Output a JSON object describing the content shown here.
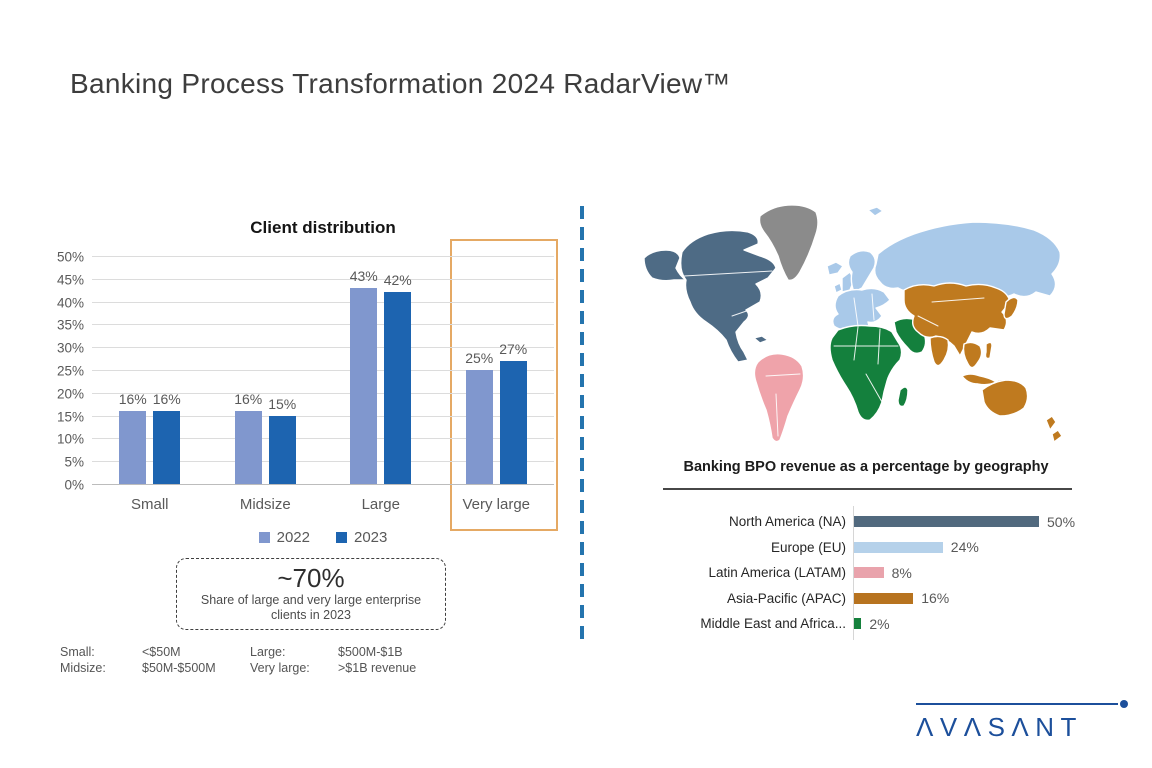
{
  "slide": {
    "title": "Banking Process Transformation 2024 RadarView™"
  },
  "colors": {
    "accent_2022": "#8097ce",
    "accent_2023": "#1d64b0",
    "highlight_box": "#e5a964",
    "divider_blue": "#2474ae",
    "logo_blue": "#1c4f9b",
    "map_north_america": "#4e6b85",
    "map_greenland": "#8b8b8b",
    "map_latin_america": "#efa3aa",
    "map_europe_russia": "#a9c9e9",
    "map_africa_middle_east": "#14803d",
    "map_asia_pacific": "#bf7a1f"
  },
  "chart_data": [
    {
      "type": "bar",
      "title": "Client distribution",
      "categories": [
        "Small",
        "Midsize",
        "Large",
        "Very large"
      ],
      "series": [
        {
          "name": "2022",
          "color": "#8097ce",
          "values": [
            16,
            16,
            43,
            25
          ]
        },
        {
          "name": "2023",
          "color": "#1d64b0",
          "values": [
            16,
            15,
            42,
            27
          ]
        }
      ],
      "value_labels": [
        [
          "16%",
          "16%",
          "43%",
          "25%"
        ],
        [
          "16%",
          "15%",
          "42%",
          "27%"
        ]
      ],
      "ylim": [
        0,
        50
      ],
      "ytick_step": 5,
      "ytick_labels": [
        "0%",
        "5%",
        "10%",
        "15%",
        "20%",
        "25%",
        "30%",
        "35%",
        "40%",
        "45%",
        "50%"
      ],
      "grid": true,
      "legend_position": "bottom",
      "highlight_category": "Very large"
    },
    {
      "type": "bar",
      "orientation": "horizontal",
      "title": "Banking BPO revenue as a percentage by geography",
      "categories": [
        "North America (NA)",
        "Europe (EU)",
        "Latin America (LATAM)",
        "Asia-Pacific (APAC)",
        "Middle East and Africa..."
      ],
      "values": [
        50,
        24,
        8,
        16,
        2
      ],
      "value_labels": [
        "50%",
        "24%",
        "8%",
        "16%",
        "2%"
      ],
      "bar_colors": [
        "#51697e",
        "#b5d1ea",
        "#e9a3ac",
        "#b7731f",
        "#15803c"
      ],
      "xlim": [
        0,
        55
      ],
      "grid": false,
      "legend_position": "none"
    }
  ],
  "client_chart": {
    "callout": {
      "headline": "~70%",
      "line1": "Share of large and very large enterprise",
      "line2": "clients in 2023"
    },
    "footnote_rows": [
      [
        "Small:",
        "<$50M",
        "Large:",
        "$500M-$1B"
      ],
      [
        "Midsize:",
        "$50M-$500M",
        "Very large:",
        ">$1B revenue"
      ]
    ]
  },
  "map": {
    "regions": [
      {
        "name": "North America",
        "color": "#4e6b85"
      },
      {
        "name": "Greenland",
        "color": "#8b8b8b"
      },
      {
        "name": "Latin America",
        "color": "#efa3aa"
      },
      {
        "name": "Europe and Russia",
        "color": "#a9c9e9"
      },
      {
        "name": "Africa and Middle East",
        "color": "#14803d"
      },
      {
        "name": "Asia-Pacific and Australia",
        "color": "#bf7a1f"
      }
    ]
  },
  "logo": {
    "text": "ΛVΛSΛNT"
  }
}
